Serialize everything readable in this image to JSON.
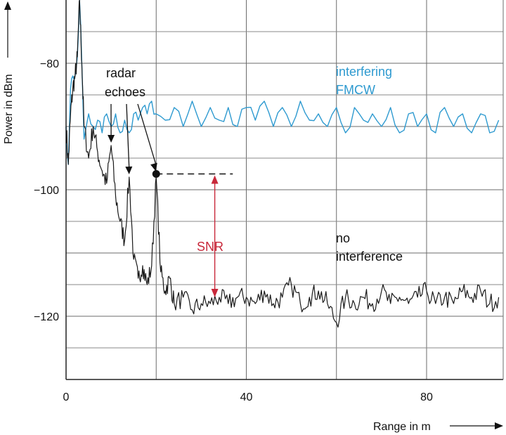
{
  "chart_data": {
    "type": "line",
    "xlabel": "Range in m",
    "ylabel": "Power in dBm",
    "xlim": [
      0,
      97
    ],
    "ylim": [
      -130,
      -70
    ],
    "x_ticks": [
      0,
      40,
      80
    ],
    "y_ticks": [
      -80,
      -100,
      -120
    ],
    "x_tick_labels": [
      "0",
      "40",
      "80"
    ],
    "y_tick_labels": [
      "−80",
      "−100",
      "−120"
    ],
    "grid": true,
    "colors": {
      "interfering": "#2e9ad0",
      "clean": "#1a1a1a",
      "snr": "#c8283a"
    },
    "series": [
      {
        "name": "interfering FMCW",
        "x": [
          0,
          0.5,
          1,
          1.5,
          2,
          2.5,
          3,
          3.5,
          4,
          5,
          6,
          7,
          8,
          9,
          10,
          11,
          12,
          13,
          14,
          15,
          16,
          17,
          18,
          19,
          20,
          22,
          24,
          26,
          28,
          30,
          32,
          34,
          36,
          38,
          40,
          42,
          44,
          46,
          48,
          50,
          52,
          54,
          56,
          58,
          60,
          62,
          64,
          66,
          68,
          70,
          72,
          74,
          76,
          78,
          80,
          82,
          84,
          86,
          88,
          90,
          92,
          94,
          96
        ],
        "y": [
          -90,
          -96,
          -84,
          -82,
          -82,
          -79,
          -70,
          -80,
          -92,
          -88,
          -90,
          -89,
          -91,
          -88,
          -90,
          -88,
          -91,
          -89,
          -91,
          -88,
          -89,
          -87,
          -88,
          -86,
          -88,
          -89,
          -87,
          -90,
          -86,
          -90,
          -87,
          -89,
          -87,
          -90,
          -87,
          -89,
          -86,
          -90,
          -87,
          -90,
          -86,
          -89,
          -88,
          -90,
          -87,
          -91,
          -87,
          -89,
          -88,
          -90,
          -87,
          -91,
          -88,
          -90,
          -88,
          -91,
          -87,
          -90,
          -88,
          -91,
          -88,
          -91,
          -89
        ]
      },
      {
        "name": "no interference",
        "x": [
          0,
          0.5,
          1,
          1.5,
          2,
          2.5,
          3,
          3.5,
          4,
          5,
          6,
          7,
          8,
          9,
          10,
          11,
          12,
          13,
          14,
          15,
          16,
          17,
          18,
          19,
          20,
          21,
          22,
          23,
          24,
          26,
          28,
          30,
          32,
          34,
          36,
          38,
          40,
          42,
          44,
          46,
          48,
          50,
          52,
          54,
          56,
          58,
          60,
          62,
          64,
          66,
          68,
          70,
          72,
          74,
          76,
          78,
          80,
          82,
          84,
          86,
          88,
          90,
          92,
          94,
          96
        ],
        "y": [
          -90,
          -96,
          -88,
          -84,
          -82,
          -79,
          -70,
          -80,
          -90,
          -95,
          -90,
          -94,
          -97,
          -99,
          -93,
          -101,
          -105,
          -108,
          -98,
          -111,
          -114,
          -112,
          -115,
          -112,
          -98,
          -113,
          -116,
          -114,
          -118,
          -117,
          -119,
          -118,
          -118,
          -117,
          -118,
          -117,
          -117,
          -118,
          -116,
          -118,
          -117,
          -115,
          -118,
          -117,
          -116,
          -118,
          -121,
          -117,
          -118,
          -117,
          -118,
          -116,
          -118,
          -117,
          -118,
          -117,
          -116,
          -118,
          -117,
          -118,
          -116,
          -117,
          -116,
          -118,
          -117
        ]
      }
    ],
    "annotations": {
      "echoes_label_line1": "radar",
      "echoes_label_line2": "echoes",
      "echo_points": [
        {
          "x": 10,
          "y": -93
        },
        {
          "x": 14,
          "y": -98
        },
        {
          "x": 20,
          "y": -97.5
        }
      ],
      "marker_point": {
        "x": 20,
        "y": -97.5
      },
      "dashed_line_x_end": 37,
      "interfering_label_line1": "interfering",
      "interfering_label_line2": "FMCW",
      "no_interference_label_line1": "no",
      "no_interference_label_line2": "interference",
      "snr_label": "SNR",
      "snr_x": 33,
      "snr_y_top": -97.5,
      "snr_y_bottom": -117
    }
  }
}
